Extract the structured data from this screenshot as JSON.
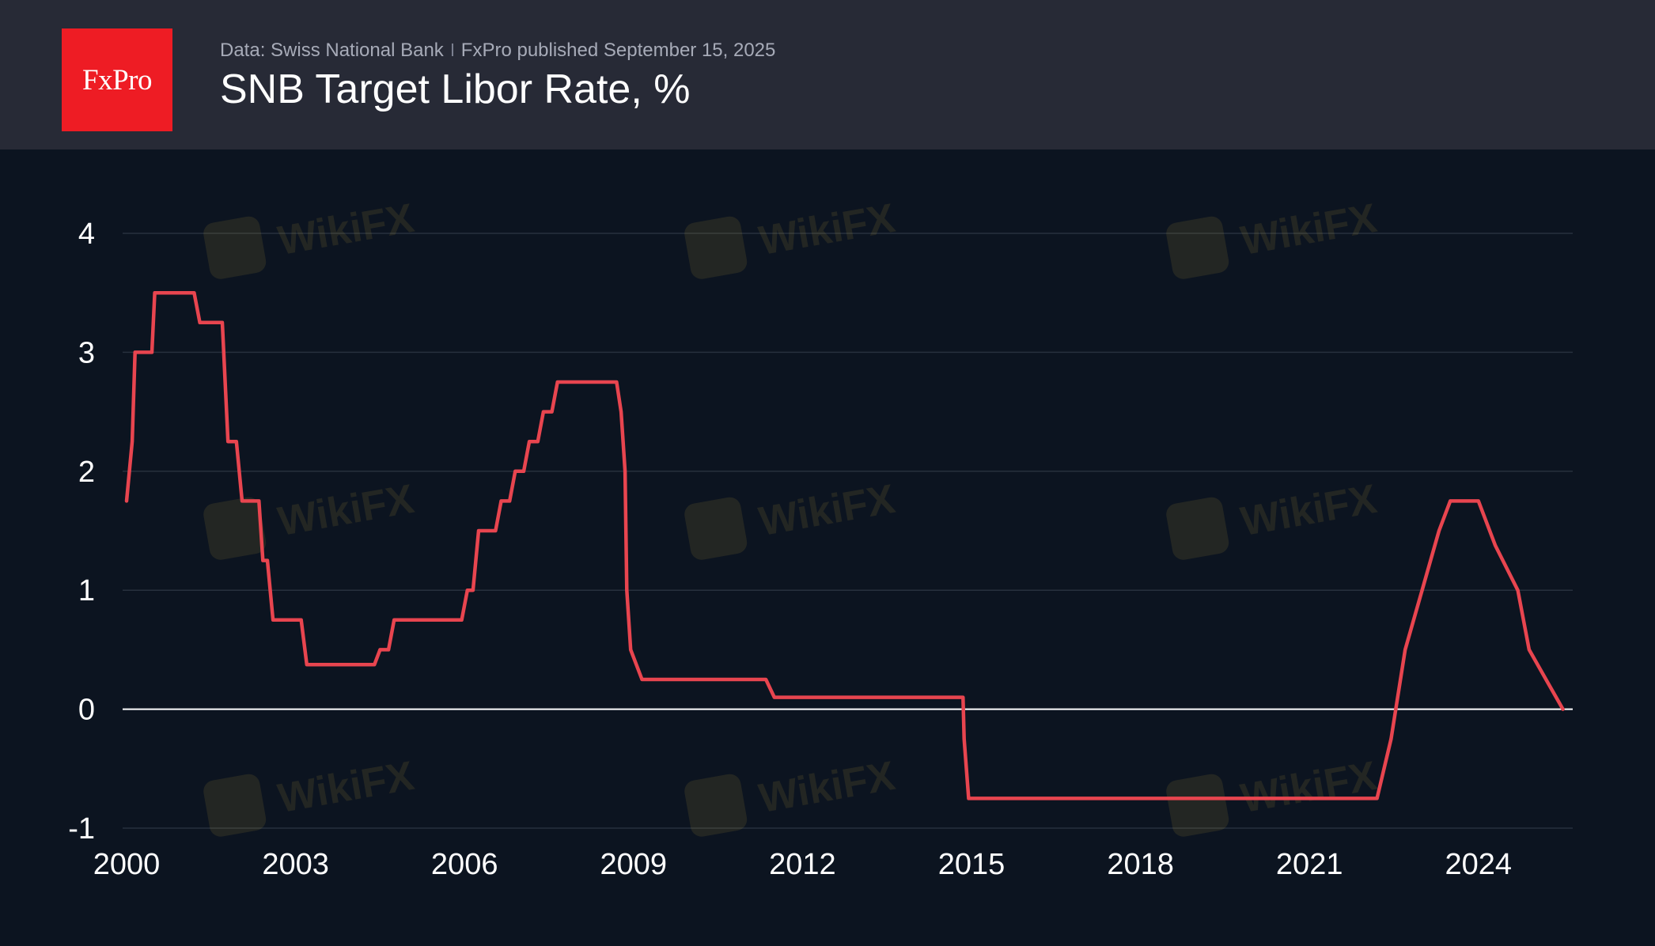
{
  "header": {
    "logo_text": "FxPro",
    "source_label": "Data: Swiss National Bank",
    "published_label": "FxPro published September 15, 2025",
    "title": "SNB Target Libor Rate, %"
  },
  "watermark_text": "WikiFX",
  "colors": {
    "header_bg": "#272a36",
    "plot_bg": "#0c1420",
    "line": "#e8454f",
    "brand_red": "#ee1c24",
    "grid": "#27303d",
    "zero_line": "#ffffff"
  },
  "chart_data": {
    "type": "line",
    "title": "SNB Target Libor Rate, %",
    "xlabel": "",
    "ylabel": "",
    "xlim": [
      2000.0,
      2025.85
    ],
    "ylim": [
      -1,
      4
    ],
    "x_ticks": [
      2000,
      2003,
      2006,
      2009,
      2012,
      2015,
      2018,
      2021,
      2024
    ],
    "y_ticks": [
      4,
      3,
      2,
      1,
      0,
      -1
    ],
    "y_tick_labels": [
      "4",
      "3",
      "2",
      "1",
      "0",
      "-1"
    ],
    "grid": true,
    "legend": "none",
    "series": [
      {
        "name": "",
        "points": [
          [
            2000.0,
            1.75
          ],
          [
            2000.1,
            2.25
          ],
          [
            2000.15,
            3.0
          ],
          [
            2000.45,
            3.0
          ],
          [
            2000.5,
            3.5
          ],
          [
            2001.2,
            3.5
          ],
          [
            2001.3,
            3.25
          ],
          [
            2001.7,
            3.25
          ],
          [
            2001.8,
            2.25
          ],
          [
            2001.95,
            2.25
          ],
          [
            2002.05,
            1.75
          ],
          [
            2002.35,
            1.75
          ],
          [
            2002.42,
            1.25
          ],
          [
            2002.5,
            1.25
          ],
          [
            2002.6,
            0.75
          ],
          [
            2003.1,
            0.75
          ],
          [
            2003.2,
            0.375
          ],
          [
            2004.4,
            0.375
          ],
          [
            2004.5,
            0.5
          ],
          [
            2004.65,
            0.5
          ],
          [
            2004.75,
            0.75
          ],
          [
            2005.95,
            0.75
          ],
          [
            2006.05,
            1.0
          ],
          [
            2006.15,
            1.0
          ],
          [
            2006.25,
            1.5
          ],
          [
            2006.55,
            1.5
          ],
          [
            2006.65,
            1.75
          ],
          [
            2006.8,
            1.75
          ],
          [
            2006.9,
            2.0
          ],
          [
            2007.05,
            2.0
          ],
          [
            2007.15,
            2.25
          ],
          [
            2007.3,
            2.25
          ],
          [
            2007.4,
            2.5
          ],
          [
            2007.55,
            2.5
          ],
          [
            2007.65,
            2.75
          ],
          [
            2008.7,
            2.75
          ],
          [
            2008.78,
            2.5
          ],
          [
            2008.85,
            2.0
          ],
          [
            2008.88,
            1.0
          ],
          [
            2008.95,
            0.5
          ],
          [
            2009.15,
            0.25
          ],
          [
            2011.35,
            0.25
          ],
          [
            2011.5,
            0.1
          ],
          [
            2014.85,
            0.1
          ],
          [
            2014.87,
            -0.25
          ],
          [
            2014.95,
            -0.75
          ],
          [
            2022.2,
            -0.75
          ],
          [
            2022.45,
            -0.25
          ],
          [
            2022.7,
            0.5
          ],
          [
            2023.0,
            1.0
          ],
          [
            2023.3,
            1.5
          ],
          [
            2023.5,
            1.75
          ],
          [
            2024.0,
            1.75
          ],
          [
            2024.3,
            1.375
          ],
          [
            2024.7,
            1.0
          ],
          [
            2024.9,
            0.5
          ],
          [
            2025.2,
            0.25
          ],
          [
            2025.5,
            0.0
          ]
        ]
      }
    ]
  }
}
